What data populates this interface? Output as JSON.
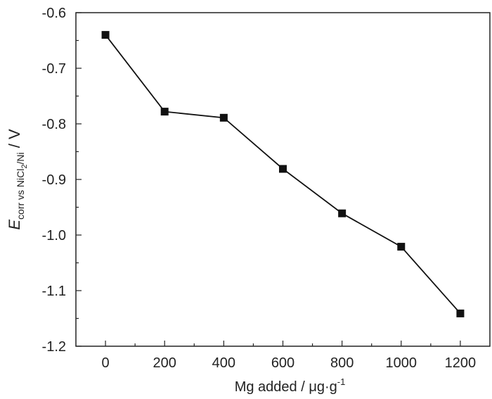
{
  "chart_data": {
    "type": "line",
    "title": "",
    "xlabel": "Mg added / μg·g",
    "xlabel_sup": "-1",
    "ylabel_main": "E",
    "ylabel_sub": "corr vs NiCl",
    "ylabel_sub2": "2",
    "ylabel_sub3": "/Ni",
    "ylabel_unit": " / V",
    "xlim": [
      -100,
      1300
    ],
    "ylim": [
      -1.2,
      -0.6
    ],
    "x_ticks": [
      0,
      200,
      400,
      600,
      800,
      1000,
      1200
    ],
    "x_tick_labels": [
      "0",
      "200",
      "400",
      "600",
      "800",
      "1000",
      "1200"
    ],
    "y_ticks": [
      -1.2,
      -1.1,
      -1.0,
      -0.9,
      -0.8,
      -0.7,
      -0.6
    ],
    "y_tick_labels": [
      "-1.2",
      "-1.1",
      "-1.0",
      "-0.9",
      "-0.8",
      "-0.7",
      "-0.6"
    ],
    "grid": false,
    "marker": "square",
    "color": "#111111",
    "x": [
      0,
      200,
      400,
      600,
      800,
      1000,
      1200
    ],
    "y": [
      -0.64,
      -0.778,
      -0.789,
      -0.881,
      -0.961,
      -1.021,
      -1.141
    ]
  }
}
